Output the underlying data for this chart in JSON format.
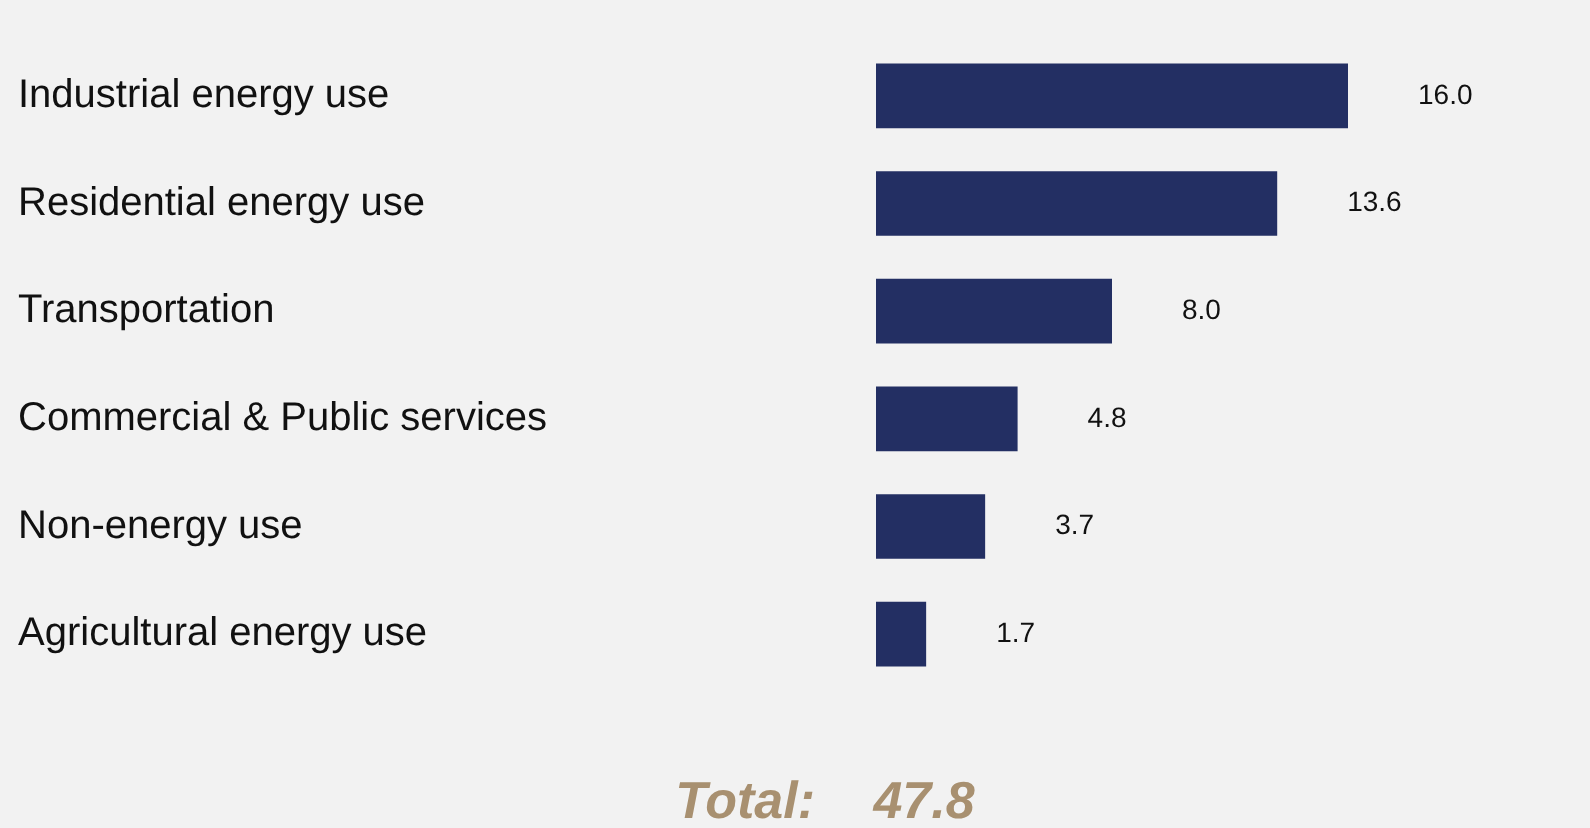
{
  "chart_data": {
    "type": "bar",
    "orientation": "horizontal",
    "categories": [
      "Industrial energy use",
      "Residential energy use",
      "Transportation",
      "Commercial & Public services",
      "Non-energy use",
      "Agricultural energy use"
    ],
    "values": [
      16.0,
      13.6,
      8.0,
      4.8,
      3.7,
      1.7
    ],
    "color": "#232f63",
    "value_labels": [
      "16.0",
      "13.6",
      "8.0",
      "4.8",
      "3.7",
      "1.7"
    ],
    "annotations": [
      "Total: 47.8"
    ]
  }
}
